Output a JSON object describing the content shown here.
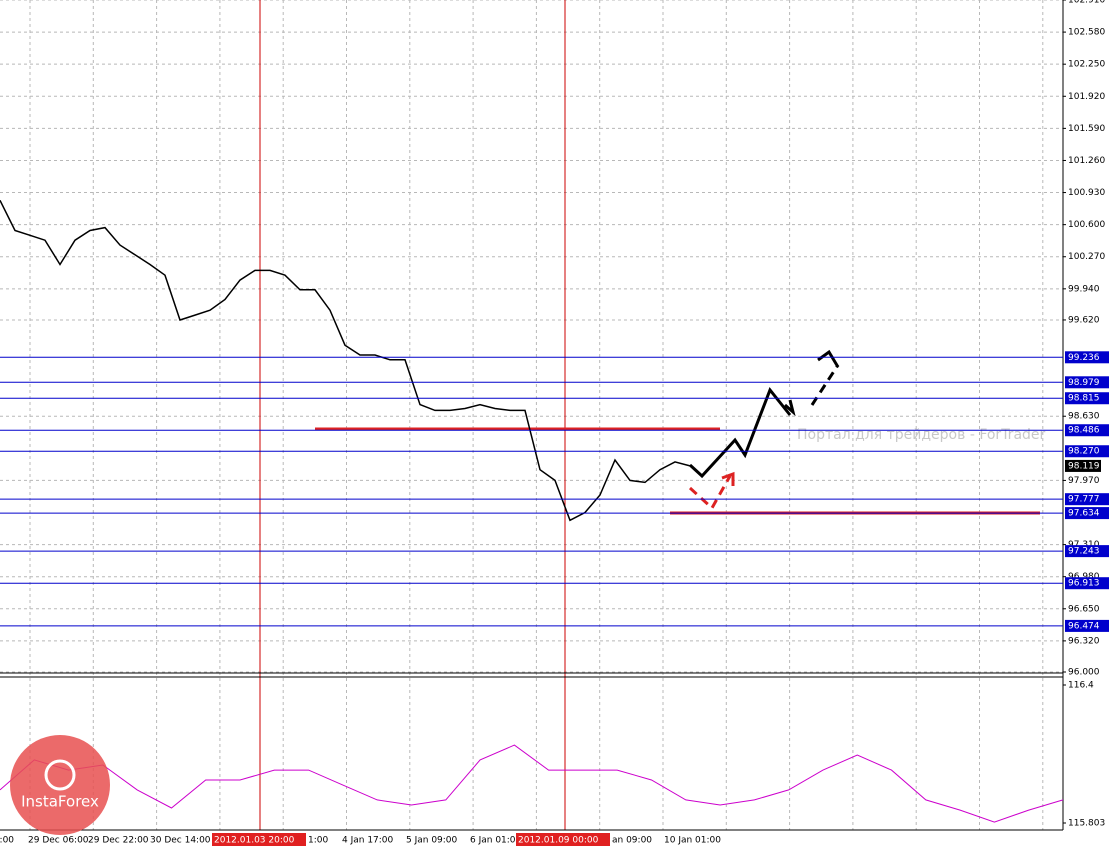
{
  "chart_data": [
    {
      "type": "line",
      "color": "#000000",
      "values": [
        100.85,
        100.54,
        100.49,
        100.44,
        100.19,
        100.44,
        100.54,
        100.57,
        100.39,
        100.29,
        100.19,
        100.08,
        99.62,
        99.67,
        99.72,
        99.83,
        100.03,
        100.13,
        100.13,
        100.08,
        99.93,
        99.93,
        99.72,
        99.36,
        99.26,
        99.26,
        99.21,
        99.21,
        98.75,
        98.69,
        98.69,
        98.71,
        98.75,
        98.71,
        98.69,
        98.69,
        98.08,
        97.97,
        97.56,
        97.64,
        97.82,
        98.18,
        97.97,
        97.95,
        98.08,
        98.16,
        98.119
      ],
      "ylim": [
        96.0,
        102.91
      ],
      "yticks": [
        {
          "value": 102.91,
          "label": "102.910"
        },
        {
          "value": 102.58,
          "label": "102.580"
        },
        {
          "value": 102.25,
          "label": "102.250"
        },
        {
          "value": 101.92,
          "label": "101.920"
        },
        {
          "value": 101.59,
          "label": "101.590"
        },
        {
          "value": 101.26,
          "label": "101.260"
        },
        {
          "value": 100.93,
          "label": "100.930"
        },
        {
          "value": 100.6,
          "label": "100.600"
        },
        {
          "value": 100.27,
          "label": "100.270"
        },
        {
          "value": 99.94,
          "label": "99.940"
        },
        {
          "value": 99.62,
          "label": "99.620"
        },
        {
          "value": 98.63,
          "label": "98.630"
        },
        {
          "value": 97.97,
          "label": "97.970"
        },
        {
          "value": 97.31,
          "label": "97.310"
        },
        {
          "value": 96.98,
          "label": "96.980"
        },
        {
          "value": 96.65,
          "label": "96.650"
        },
        {
          "value": 96.32,
          "label": "96.320"
        },
        {
          "value": 96.0,
          "label": "96.000"
        }
      ],
      "levels": [
        {
          "value": 99.236,
          "label": "99.236"
        },
        {
          "value": 98.979,
          "label": "98.979"
        },
        {
          "value": 98.815,
          "label": "98.815"
        },
        {
          "value": 98.486,
          "label": "98.486"
        },
        {
          "value": 98.27,
          "label": "98.270"
        },
        {
          "value": 97.777,
          "label": "97.777"
        },
        {
          "value": 97.634,
          "label": "97.634"
        },
        {
          "value": 97.243,
          "label": "97.243"
        },
        {
          "value": 96.913,
          "label": "96.913"
        },
        {
          "value": 96.474,
          "label": "96.474"
        }
      ],
      "level_color": "#0000cc",
      "current": {
        "value": 98.119,
        "label": "98.119"
      },
      "watermark": "Портал для трейдеров - ForTrader",
      "xlabels": [
        "e:00",
        "29 Dec 06:00",
        "29 Dec 22:00",
        "30 Dec 14:00",
        "2012.01.03 20:00",
        "1:00",
        "4 Jan 17:00",
        "5 Jan 09:00",
        "6 Jan 01:00",
        "2012.01.09 00:00",
        "an 09:00",
        "10 Jan 01:00"
      ],
      "highlight": [
        4,
        9
      ]
    },
    {
      "type": "line",
      "color": "#cc00cc",
      "values": [
        115.946,
        116.076,
        116.032,
        116.054,
        115.946,
        115.868,
        115.989,
        115.989,
        116.032,
        116.032,
        115.967,
        115.903,
        115.881,
        115.903,
        116.076,
        116.14,
        116.032,
        116.032,
        116.032,
        115.989,
        115.903,
        115.881,
        115.903,
        115.946,
        116.032,
        116.097,
        116.032,
        115.903,
        115.859,
        115.807,
        115.859,
        115.903
      ],
      "ylim": [
        115.803,
        116.4
      ],
      "yticks": [
        {
          "value": 116.4,
          "label": "116.4"
        },
        {
          "value": 115.803,
          "label": "115.803"
        }
      ]
    }
  ],
  "logo": "InstaForex"
}
